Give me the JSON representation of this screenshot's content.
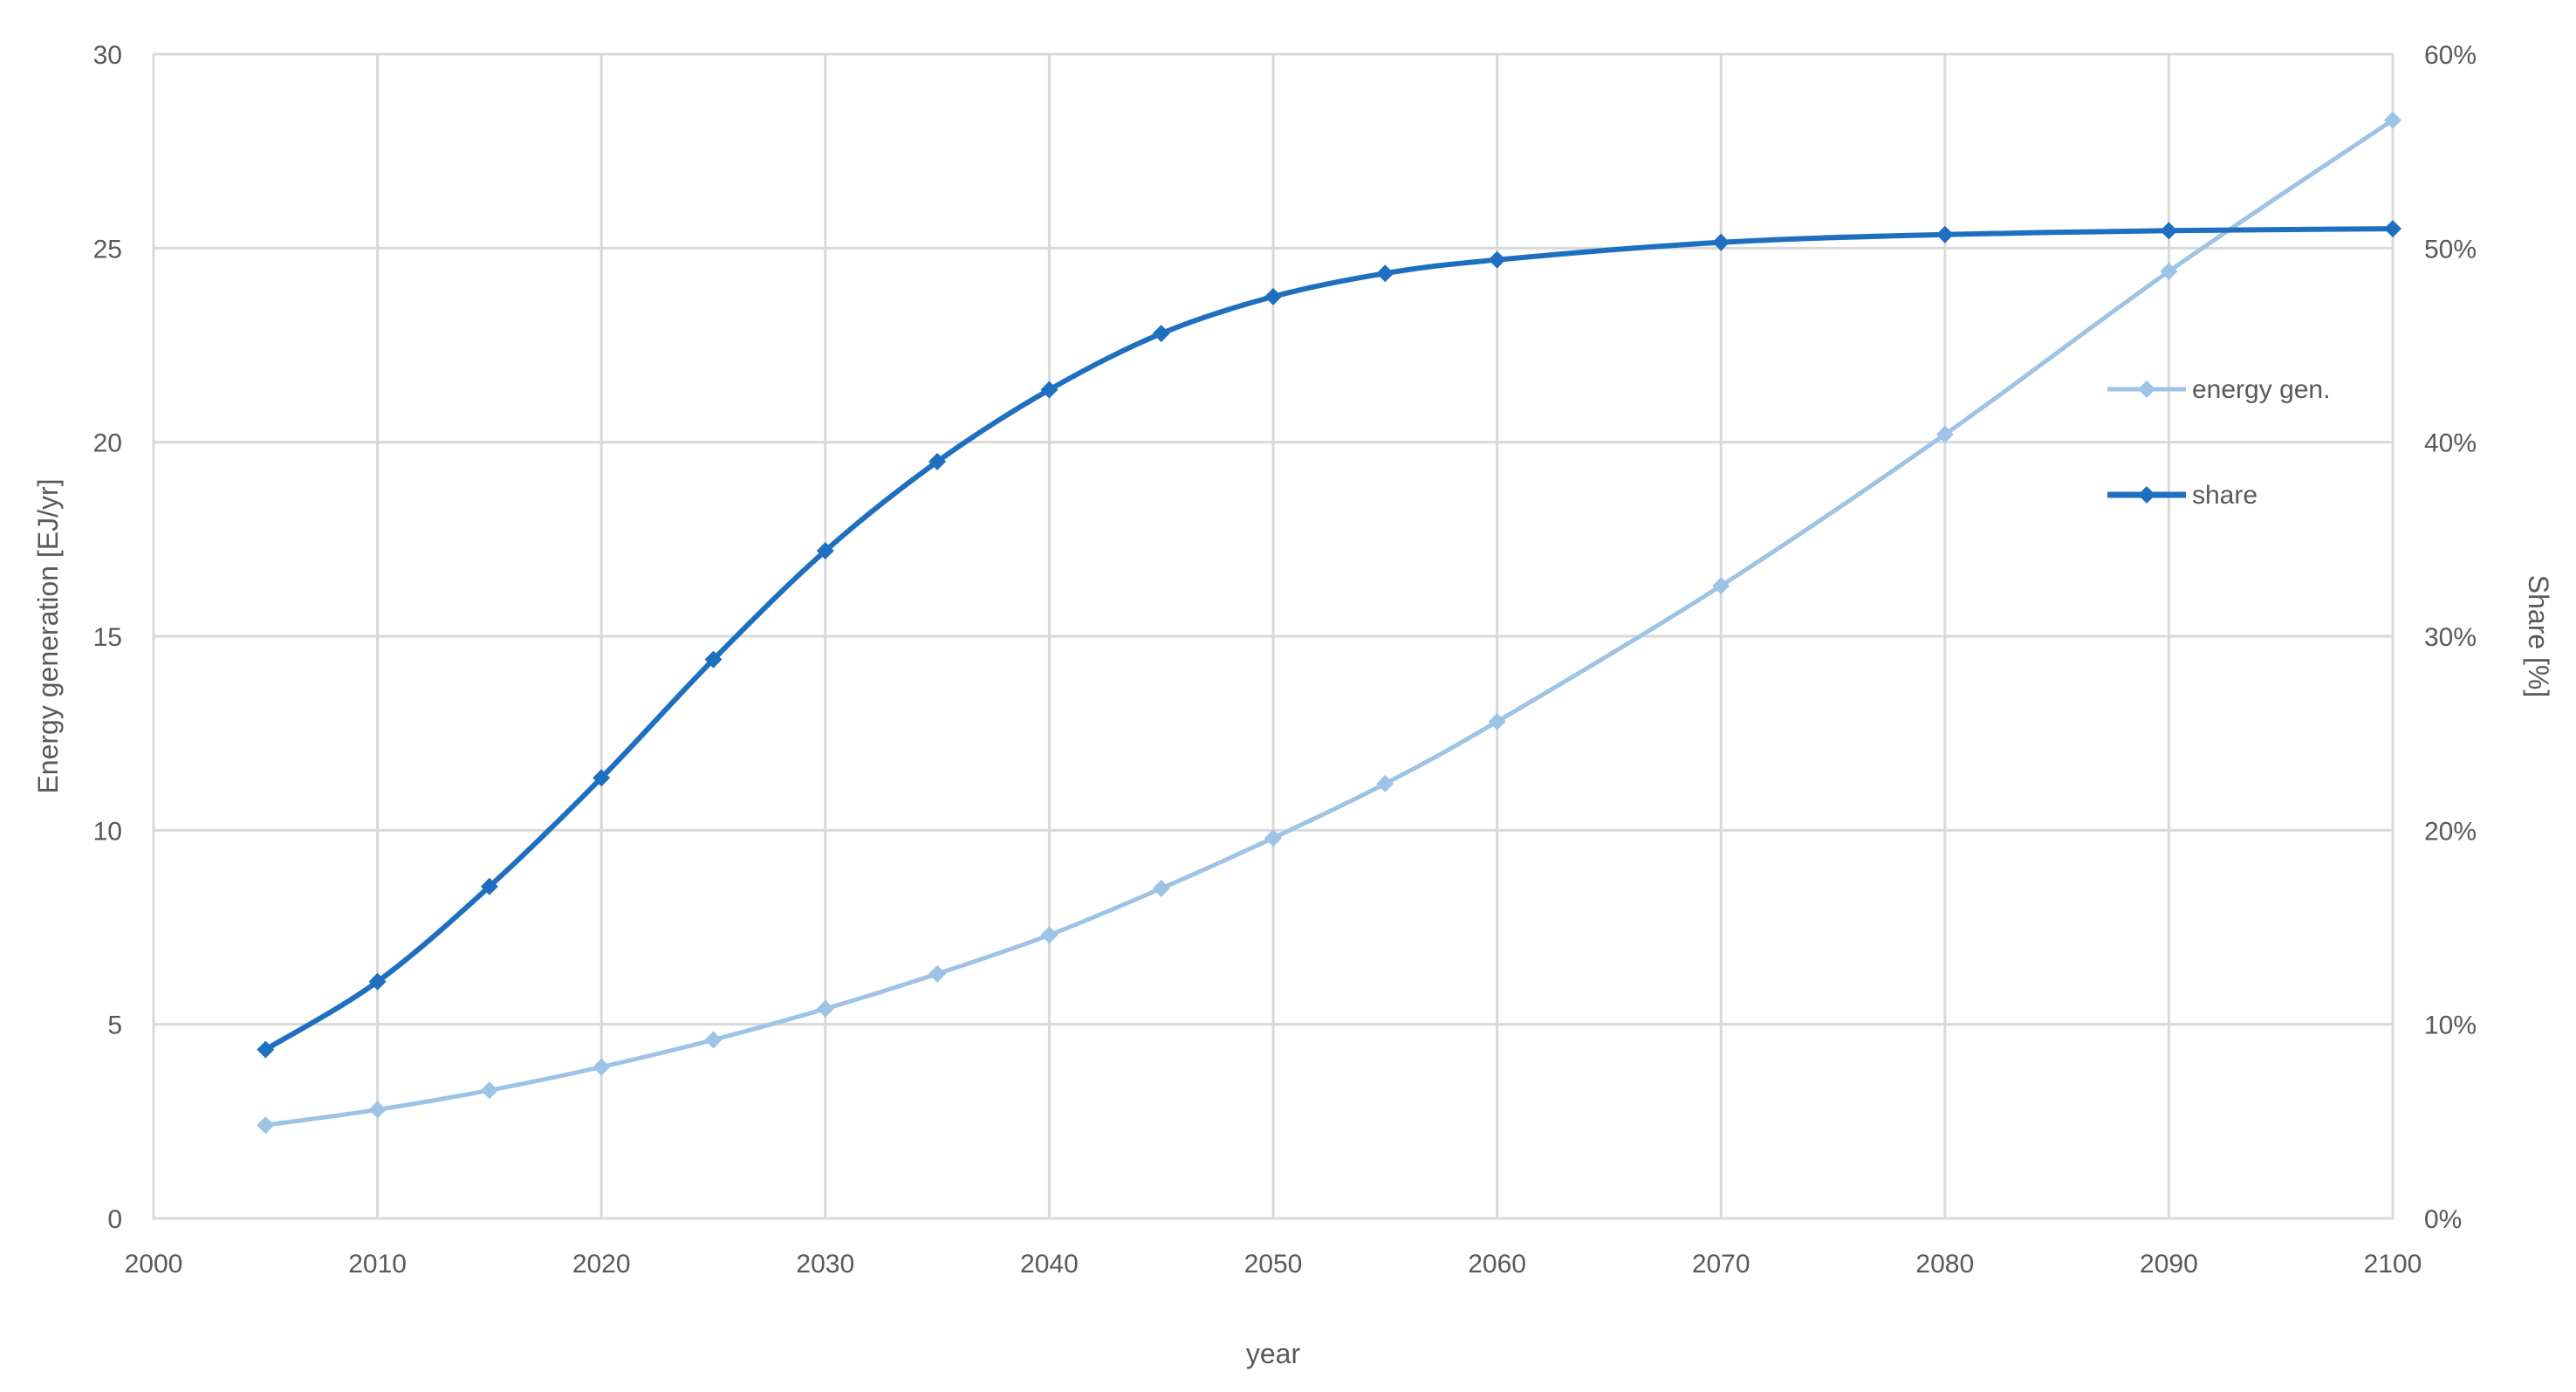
{
  "chart_data": {
    "type": "line",
    "title": "",
    "xlabel": "year",
    "ylabel": "Energy generation [EJ/yr]",
    "y2label": "Share [%]",
    "xlim": [
      2000,
      2100
    ],
    "ylim": [
      0,
      30
    ],
    "y2lim": [
      0,
      0.6
    ],
    "x_ticks": [
      2000,
      2010,
      2020,
      2030,
      2040,
      2050,
      2060,
      2070,
      2080,
      2090,
      2100
    ],
    "y_ticks": [
      0,
      5,
      10,
      15,
      20,
      25,
      30
    ],
    "y2_ticks": [
      "0%",
      "10%",
      "20%",
      "30%",
      "40%",
      "50%",
      "60%"
    ],
    "y2_tick_values": [
      0,
      0.1,
      0.2,
      0.3,
      0.4,
      0.5,
      0.6
    ],
    "grid": true,
    "legend_position": "right",
    "series": [
      {
        "name": "energy gen.",
        "axis": "left",
        "color": "#9dc3e6",
        "marker": "diamond",
        "x": [
          2005,
          2010,
          2015,
          2020,
          2025,
          2030,
          2035,
          2040,
          2045,
          2050,
          2055,
          2060,
          2070,
          2080,
          2090,
          2100
        ],
        "values": [
          2.4,
          2.8,
          3.3,
          3.9,
          4.6,
          5.4,
          6.3,
          7.3,
          8.5,
          9.8,
          11.2,
          12.8,
          16.3,
          20.2,
          24.4,
          28.3
        ]
      },
      {
        "name": "share",
        "axis": "right",
        "color": "#1f6fc1",
        "marker": "diamond",
        "x": [
          2005,
          2010,
          2015,
          2020,
          2025,
          2030,
          2035,
          2040,
          2045,
          2050,
          2055,
          2060,
          2070,
          2080,
          2090,
          2100
        ],
        "values": [
          0.087,
          0.122,
          0.171,
          0.227,
          0.288,
          0.344,
          0.39,
          0.427,
          0.456,
          0.475,
          0.487,
          0.494,
          0.503,
          0.507,
          0.509,
          0.51
        ]
      }
    ]
  }
}
